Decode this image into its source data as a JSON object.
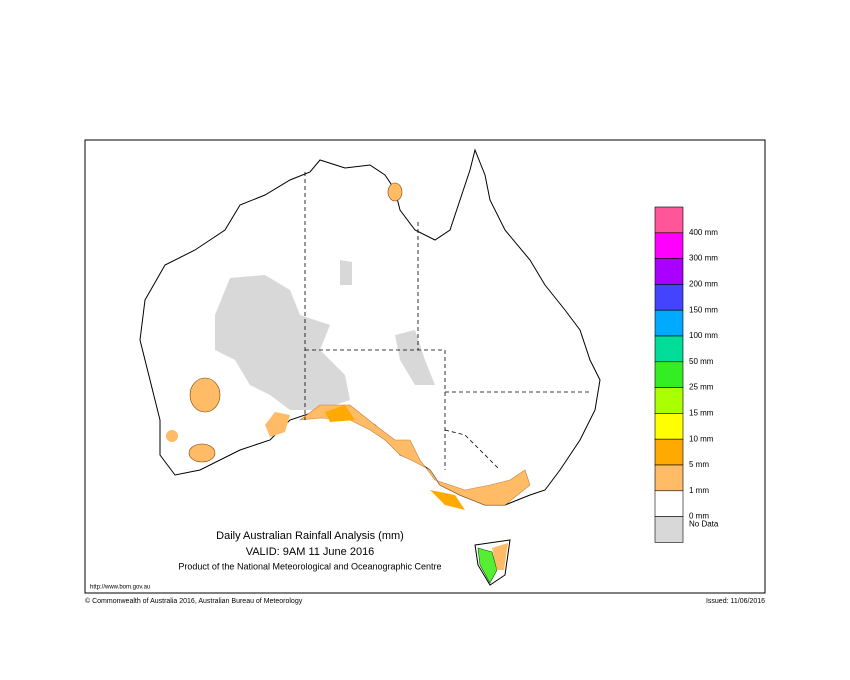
{
  "title": "Daily Australian Rainfall Analysis (mm)",
  "valid": "VALID: 9AM 11 June 2016",
  "product": "Product of the National Meteorological and Oceanographic Centre",
  "url": "http://www.bom.gov.au",
  "copyright": "© Commonwealth of Australia 2016, Australian Bureau of Meteorology",
  "issued": "Issued: 11/06/2016",
  "legend": {
    "colors": [
      "#ff5599",
      "#ff00ff",
      "#aa00ff",
      "#4444ff",
      "#00aaff",
      "#00dd99",
      "#33ee22",
      "#aaff00",
      "#ffff00",
      "#ffaa00",
      "#ffbb66",
      "#ffffff",
      "#d8d8d8"
    ],
    "labels": [
      "400 mm",
      "300 mm",
      "200 mm",
      "150 mm",
      "100 mm",
      "50 mm",
      "25 mm",
      "15 mm",
      "10 mm",
      "5 mm",
      "1 mm",
      "0 mm"
    ],
    "no_data": "No Data"
  }
}
